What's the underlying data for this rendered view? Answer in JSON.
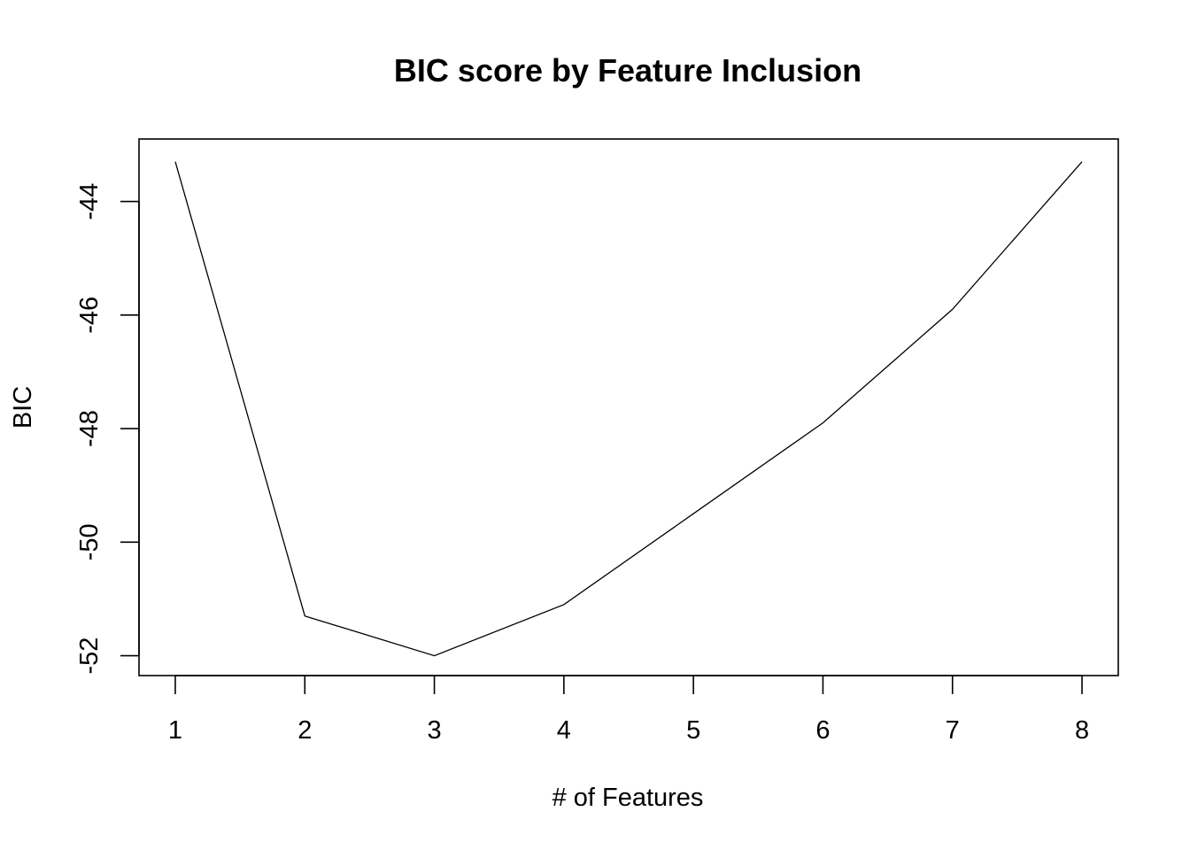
{
  "chart_data": {
    "type": "line",
    "title": "BIC score by Feature Inclusion",
    "xlabel": "# of Features",
    "ylabel": "BIC",
    "x": [
      1,
      2,
      3,
      4,
      5,
      6,
      7,
      8
    ],
    "y": [
      -43.3,
      -51.3,
      -52.0,
      -51.1,
      -49.5,
      -47.9,
      -45.9,
      -43.3
    ],
    "xticks": [
      1,
      2,
      3,
      4,
      5,
      6,
      7,
      8
    ],
    "yticks": [
      -52,
      -50,
      -48,
      -46,
      -44
    ],
    "xlim": [
      0.72,
      8.28
    ],
    "ylim": [
      -52.35,
      -42.9
    ],
    "grid": false,
    "legend": "none",
    "line_color": "#000000"
  }
}
